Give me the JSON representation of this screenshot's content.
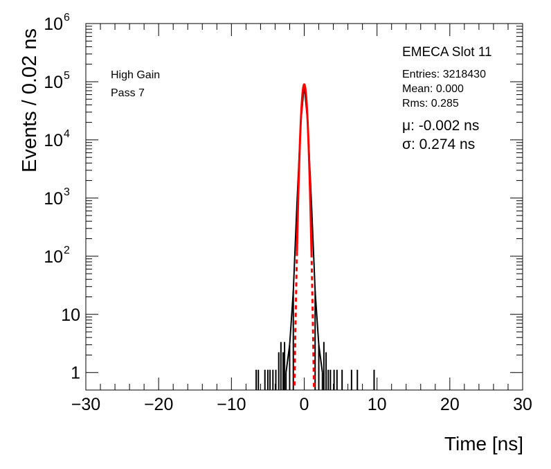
{
  "chart_data": {
    "type": "histogram",
    "xlabel": "Time [ns]",
    "ylabel": "Events / 0.02 ns",
    "xlim": [
      -30,
      30
    ],
    "ylim": [
      0.5,
      1000000
    ],
    "yscale": "log",
    "x_ticks": [
      "−30",
      "−20",
      "−10",
      "0",
      "10",
      "20",
      "30"
    ],
    "x_tick_values": [
      -30,
      -20,
      -10,
      0,
      10,
      20,
      30
    ],
    "y_ticks": [
      {
        "value": 1,
        "base": "1",
        "exp": ""
      },
      {
        "value": 10,
        "base": "10",
        "exp": ""
      },
      {
        "value": 100,
        "base": "10",
        "exp": "2"
      },
      {
        "value": 1000,
        "base": "10",
        "exp": "3"
      },
      {
        "value": 10000,
        "base": "10",
        "exp": "4"
      },
      {
        "value": 100000,
        "base": "10",
        "exp": "5"
      },
      {
        "value": 1000000,
        "base": "10",
        "exp": "6"
      }
    ],
    "labels_left": [
      "High Gain",
      "Pass 7"
    ],
    "stats_title": "EMECA Slot 11",
    "stats": [
      "Entries: 3218430",
      "Mean: 0.000",
      "Rms: 0.285"
    ],
    "fit_params": [
      "μ: -0.002 ns",
      "σ: 0.274 ns"
    ],
    "fit": {
      "amplitude": 90000,
      "mu": -0.002,
      "sigma": 0.274,
      "color": "#ff0000"
    },
    "histogram": {
      "color": "#000000",
      "core": [
        [
          -2.5,
          1
        ],
        [
          -2.0,
          3
        ],
        [
          -1.5,
          25
        ],
        [
          -1.0,
          800
        ],
        [
          -0.5,
          18000
        ],
        [
          0.0,
          90000
        ],
        [
          0.5,
          18000
        ],
        [
          1.0,
          800
        ],
        [
          1.5,
          25
        ],
        [
          2.0,
          3
        ],
        [
          2.5,
          1
        ]
      ],
      "tail_spikes": [
        [
          -6.6,
          1
        ],
        [
          -6.3,
          1
        ],
        [
          -5.4,
          1
        ],
        [
          -5.0,
          1
        ],
        [
          -4.7,
          1
        ],
        [
          -4.3,
          1
        ],
        [
          -3.9,
          1
        ],
        [
          -3.5,
          2
        ],
        [
          -3.2,
          3
        ],
        [
          -2.9,
          2
        ],
        [
          -2.7,
          3
        ],
        [
          2.7,
          3
        ],
        [
          3.0,
          2
        ],
        [
          3.3,
          1
        ],
        [
          3.6,
          1
        ],
        [
          4.1,
          1
        ],
        [
          4.5,
          1
        ],
        [
          5.2,
          1
        ],
        [
          6.5,
          1
        ],
        [
          7.3,
          1
        ],
        [
          9.6,
          1
        ]
      ]
    }
  }
}
